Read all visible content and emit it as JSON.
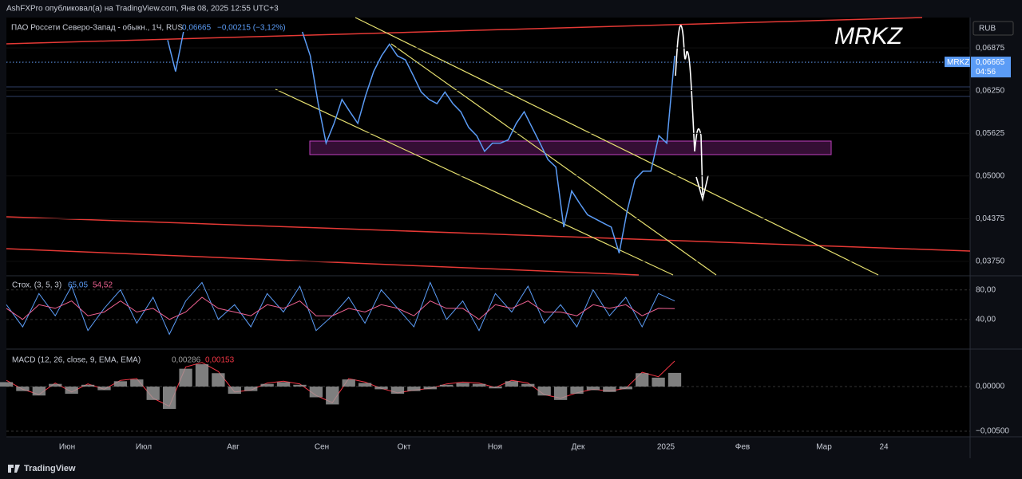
{
  "header": {
    "author_line": "AshFXPro опубликовал(а) на TradingView.com, Янв 08, 2025 12:55 UTC+3",
    "brand": "TradingView"
  },
  "time_labels": [
    "Июн",
    "Июл",
    "Авг",
    "Сен",
    "Окт",
    "Ноя",
    "Дек",
    "2025",
    "Фев",
    "Мар",
    "24"
  ],
  "chart_data": [
    {
      "type": "line",
      "title": "ПАО Россети Северо-Запад - обыкн., 1Ч, RUS",
      "last_price": {
        "value": 0.06665,
        "label": "0,06665"
      },
      "change": "−0,00215 (−3,12%)",
      "symbol": "MRKZ",
      "countdown": "04:56",
      "currency": "RUB",
      "annotation": "MRKZ",
      "series": [
        {
          "color": "#5b9cf6",
          "values": [
            0.0699,
            0.0653,
            0.0711,
            null,
            null,
            null,
            null,
            null,
            null,
            null,
            null,
            null,
            null,
            null,
            null,
            null,
            null,
            0.0711,
            0.0676,
            0.0606,
            0.0548,
            0.0577,
            0.0612,
            0.0594,
            0.0577,
            0.0618,
            0.0653,
            0.0676,
            0.0693,
            0.0676,
            0.067,
            0.0647,
            0.0623,
            0.0612,
            0.0606,
            0.0623,
            0.0606,
            0.0594,
            0.0571,
            0.0559,
            0.0536,
            0.0548,
            0.0548,
            0.0553,
            0.0577,
            0.0594,
            0.0571,
            0.0548,
            0.0524,
            0.0513,
            0.0425,
            0.0478,
            0.046,
            0.0443,
            0.0437,
            0.0431,
            0.0425,
            0.0387,
            0.0449,
            0.0495,
            0.0507,
            0.0507,
            0.0559,
            0.0548,
            0.0676
          ]
        }
      ],
      "ylim": [
        0.0355,
        0.0732
      ],
      "yticks": [
        {
          "value": 0.0375,
          "label": "0,03750"
        },
        {
          "value": 0.04375,
          "label": "0,04375"
        },
        {
          "value": 0.05,
          "label": "0,05000"
        },
        {
          "value": 0.05625,
          "label": "0,05625"
        },
        {
          "value": 0.0625,
          "label": "0,06250"
        },
        {
          "value": 0.06875,
          "label": "0,06875"
        }
      ]
    },
    {
      "type": "line",
      "title": "Стох. (3, 5, 3)",
      "legend_values": [
        "65,05",
        "54,52"
      ],
      "series": [
        {
          "color": "#5b9cf6",
          "values": [
            60,
            30,
            75,
            45,
            85,
            25,
            55,
            80,
            35,
            70,
            20,
            65,
            90,
            40,
            60,
            30,
            75,
            50,
            85,
            25,
            45,
            70,
            35,
            80,
            55,
            30,
            90,
            40,
            65,
            25,
            75,
            50,
            85,
            35,
            60,
            30,
            80,
            45,
            70,
            30,
            75,
            65.05
          ]
        },
        {
          "color": "#f06292",
          "values": [
            55,
            40,
            60,
            55,
            65,
            45,
            50,
            65,
            50,
            55,
            40,
            50,
            70,
            55,
            50,
            45,
            60,
            55,
            65,
            45,
            45,
            55,
            50,
            60,
            55,
            45,
            65,
            55,
            55,
            40,
            60,
            55,
            65,
            50,
            50,
            45,
            60,
            55,
            60,
            45,
            55,
            54.52
          ]
        }
      ],
      "ylim": [
        1,
        98
      ],
      "yticks": [
        {
          "value": 40,
          "label": "40,00"
        },
        {
          "value": 80,
          "label": "80,00"
        }
      ]
    },
    {
      "type": "macd",
      "title": "MACD (12, 26, close, 9, EMA, EMA)",
      "legend_values": [
        "0,00286",
        "0,00153"
      ],
      "series": [
        {
          "kind": "line",
          "color": "#f23645",
          "values": [
            0.0007,
            -0.0003,
            -0.0009,
            0.0004,
            -0.0006,
            0.0003,
            -0.0003,
            0.0007,
            0.0009,
            -0.0013,
            -0.0022,
            0.0022,
            0.0027,
            0.0017,
            -0.0006,
            -0.0004,
            0.0004,
            0.0006,
            0.0003,
            -0.001,
            -0.0018,
            0.0009,
            0.0005,
            -0.0002,
            -0.0007,
            -0.0004,
            -0.0002,
            0.0003,
            0.0005,
            0.0004,
            -0.0001,
            0.0007,
            0.0004,
            -0.0009,
            -0.0013,
            -0.0007,
            -0.0003,
            -0.0005,
            -0.0002,
            0.0016,
            0.0011,
            0.00286
          ]
        },
        {
          "kind": "histogram",
          "color": "#9e9e9e",
          "values": [
            0.0005,
            -0.0005,
            -0.001,
            0.0003,
            -0.0008,
            0.0002,
            -0.0004,
            0.0006,
            0.0008,
            -0.0015,
            -0.0025,
            0.002,
            0.0025,
            0.0015,
            -0.0008,
            -0.0005,
            0.0003,
            0.0005,
            0.0002,
            -0.0012,
            -0.002,
            0.0008,
            0.0004,
            -0.0003,
            -0.0008,
            -0.0005,
            -0.0003,
            0.0002,
            0.0004,
            0.0003,
            -0.0002,
            0.0006,
            0.0003,
            -0.001,
            -0.0015,
            -0.0008,
            -0.0004,
            -0.0006,
            -0.0003,
            0.0015,
            0.001,
            0.00153
          ]
        }
      ],
      "ylim": [
        -0.00562,
        0.00411
      ],
      "yticks": [
        {
          "value": -0.005,
          "label": "−0,00500"
        },
        {
          "value": 0,
          "label": "0,00000"
        }
      ]
    }
  ]
}
